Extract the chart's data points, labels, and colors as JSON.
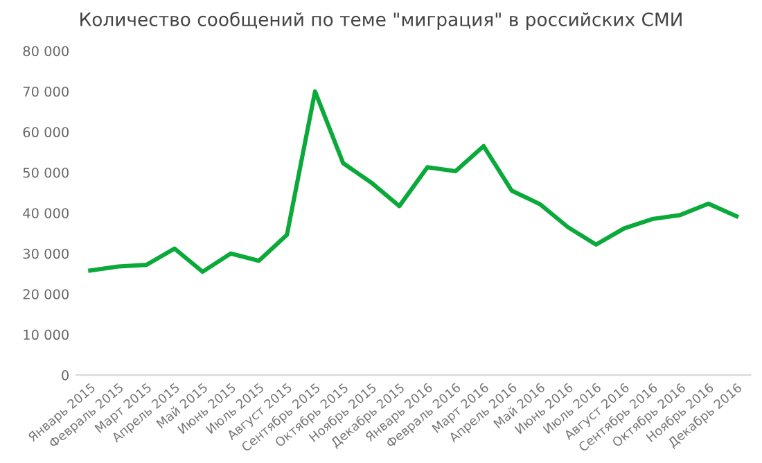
{
  "chart_data": {
    "type": "line",
    "title": "Количество сообщений по теме \"миграция\" в российских СМИ",
    "categories": [
      "Январь 2015",
      "Февраль 2015",
      "Март 2015",
      "Апрель 2015",
      "Май 2015",
      "Июнь 2015",
      "Июль 2015",
      "Август 2015",
      "Сентябрь 2015",
      "Октябрь 2015",
      "Ноябрь 2015",
      "Декабрь 2015",
      "Январь 2016",
      "Февраль 2016",
      "Март 2016",
      "Апрель 2016",
      "Май 2016",
      "Июнь 2016",
      "Июль 2016",
      "Август 2016",
      "Сентябрь 2016",
      "Октябрь 2016",
      "Ноябрь 2016",
      "Декабрь 2016"
    ],
    "series": [
      {
        "color": "#0aa93a",
        "values": [
          25800,
          26800,
          27200,
          31200,
          25500,
          30000,
          28200,
          34600,
          70000,
          52300,
          47500,
          41700,
          51300,
          50300,
          56500,
          45500,
          42200,
          36500,
          32200,
          36200,
          38500,
          39500,
          42300,
          39200
        ]
      }
    ],
    "ylim": [
      0,
      80000
    ],
    "yticks": [
      {
        "value": 0,
        "label": "0"
      },
      {
        "value": 10000,
        "label": "10 000"
      },
      {
        "value": 20000,
        "label": "20 000"
      },
      {
        "value": 30000,
        "label": "30 000"
      },
      {
        "value": 40000,
        "label": "40 000"
      },
      {
        "value": 50000,
        "label": "50 000"
      },
      {
        "value": 60000,
        "label": "60 000"
      },
      {
        "value": 70000,
        "label": "70 000"
      },
      {
        "value": 80000,
        "label": "80 000"
      }
    ],
    "grid": false,
    "marker": "none",
    "line_style": "solid"
  }
}
